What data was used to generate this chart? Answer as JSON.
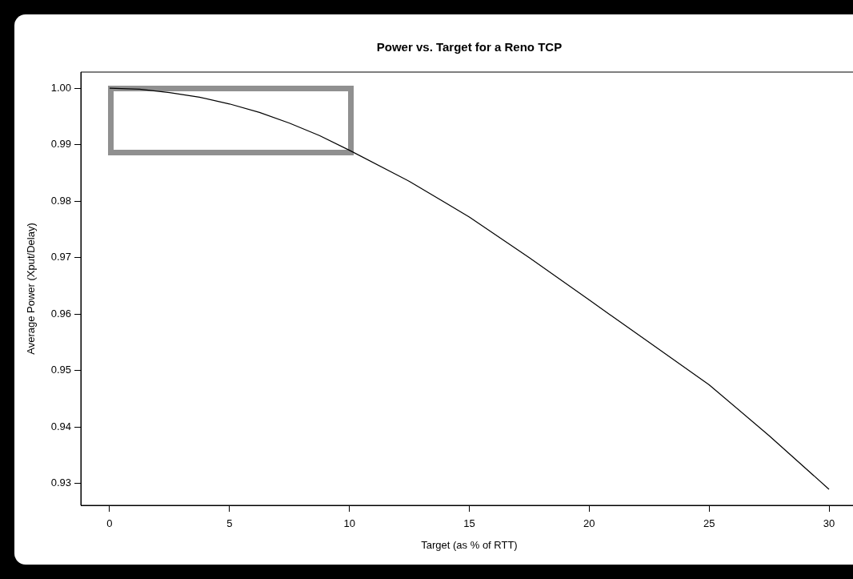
{
  "chart_data": {
    "type": "line",
    "title": "Power vs. Target for a Reno TCP",
    "xlabel": "Target (as % of RTT)",
    "ylabel": "Average Power (Xput/Delay)",
    "x": [
      0,
      1.25,
      2.5,
      3.75,
      5,
      6.25,
      7.5,
      8.75,
      10,
      12.5,
      15,
      17.5,
      20,
      22.5,
      25,
      27.5,
      30
    ],
    "series": [
      {
        "color": "#000000",
        "values": [
          1.0,
          0.9998,
          0.9992,
          0.9984,
          0.9972,
          0.9957,
          0.9938,
          0.9916,
          0.989,
          0.9835,
          0.9772,
          0.97,
          0.9625,
          0.955,
          0.9475,
          0.9385,
          0.929
        ]
      }
    ],
    "xlim": [
      -1.2,
      31.2
    ],
    "xticks": [
      0,
      5,
      10,
      15,
      20,
      25,
      30
    ],
    "ylim": [
      0.92616,
      1.00284
    ],
    "yticks": [
      0.93,
      0.94,
      0.95,
      0.96,
      0.97,
      0.98,
      0.99,
      {
        "value": 1.0,
        "label": "1.00"
      }
    ],
    "grid": false,
    "marker": "none",
    "line_style": "solid"
  }
}
